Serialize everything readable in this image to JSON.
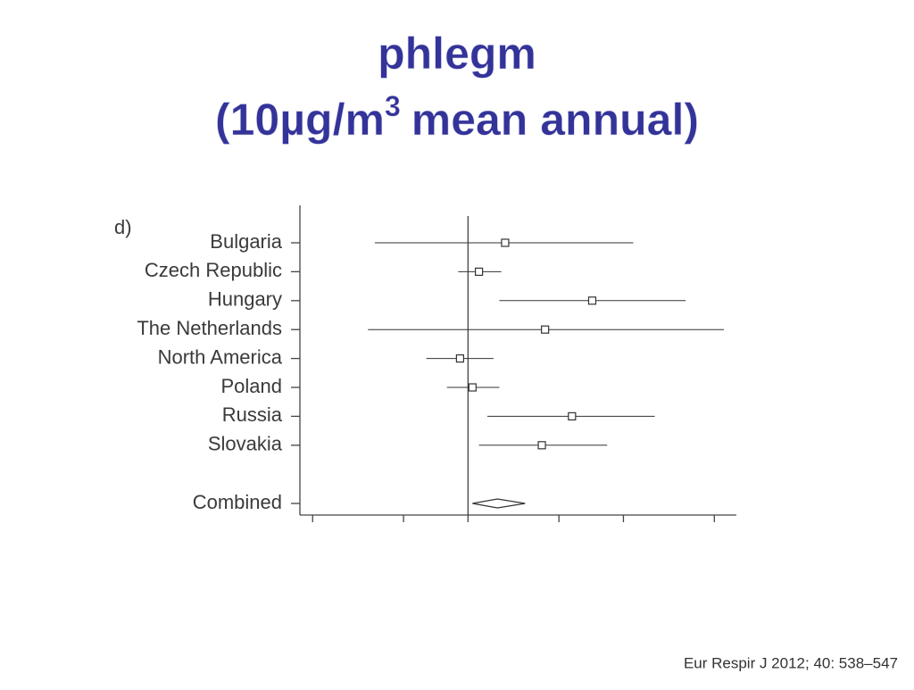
{
  "chart_data": {
    "type": "forest",
    "title_line1": "phlegm",
    "title_line2": "(10µg/m",
    "title_superscript": "3",
    "title_line2_rest": "mean annual)",
    "panel_label": "d)",
    "categories": [
      "Bulgaria",
      "Czech Republic",
      "Hungary",
      "The Netherlands",
      "North America",
      "Poland",
      "Russia",
      "Slovakia"
    ],
    "values": [
      1.18,
      1.05,
      1.74,
      1.41,
      0.965,
      1.02,
      1.59,
      1.39
    ],
    "lower": [
      0.66,
      0.957,
      1.15,
      0.64,
      0.83,
      0.91,
      1.09,
      1.05
    ],
    "upper": [
      2.09,
      1.16,
      2.64,
      3.13,
      1.12,
      1.15,
      2.3,
      1.86
    ],
    "summary": {
      "label": "Combined",
      "value": 1.14,
      "lower": 1.02,
      "upper": 1.29
    },
    "reference": 1,
    "log_x": true,
    "xlim": [
      0.48,
      3.31
    ],
    "xticks": [
      0.5,
      0.75,
      1,
      1.5,
      2,
      3
    ],
    "color": "#333333",
    "source": "Eur Respir J 2012; 40: 538–547"
  }
}
